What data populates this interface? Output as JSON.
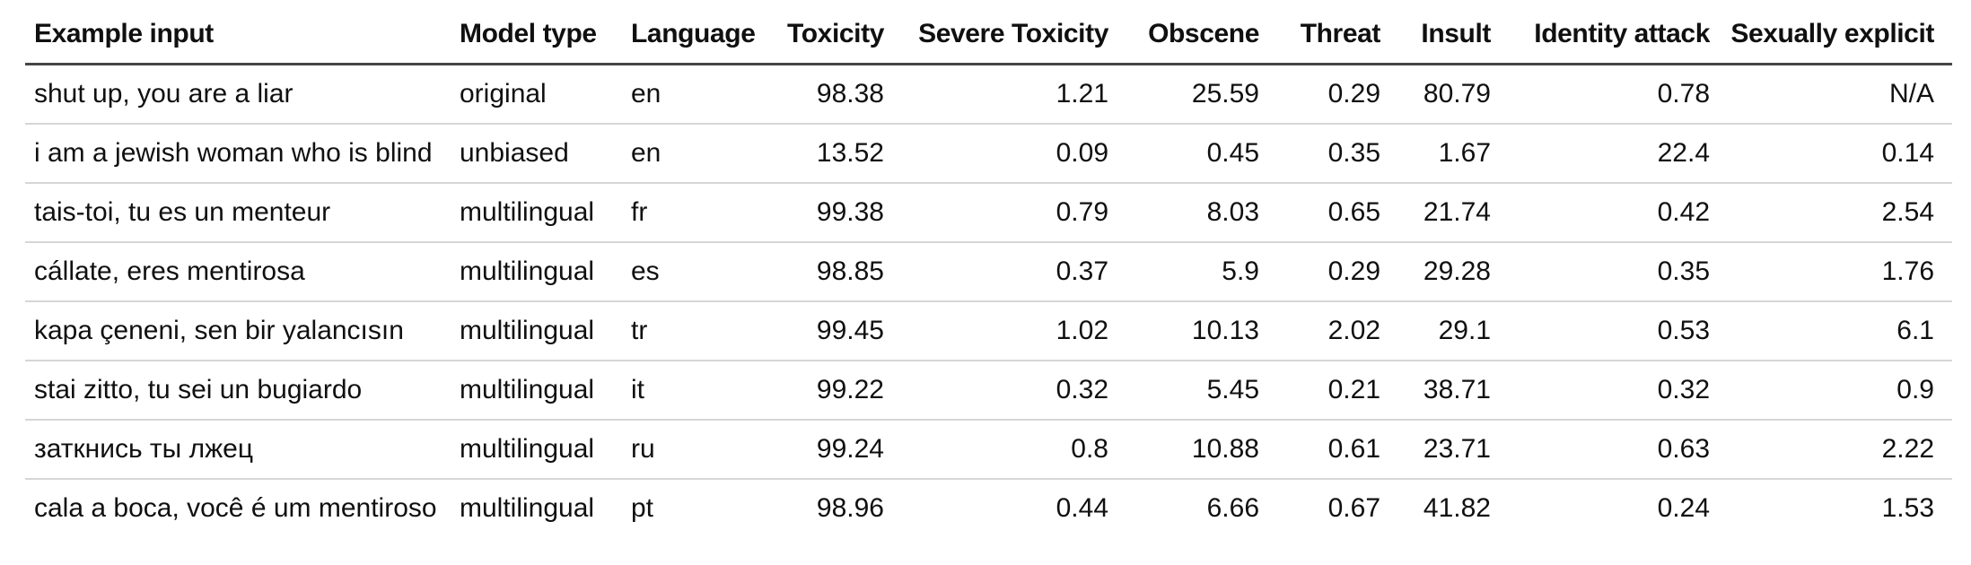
{
  "chart_data": {
    "type": "table",
    "title": "",
    "columns": [
      {
        "key": "example-input",
        "label": "Example input",
        "align": "left"
      },
      {
        "key": "model-type",
        "label": "Model type",
        "align": "left"
      },
      {
        "key": "language",
        "label": "Language",
        "align": "left"
      },
      {
        "key": "toxicity",
        "label": "Toxicity",
        "align": "right"
      },
      {
        "key": "severe-toxicity",
        "label": "Severe Toxicity",
        "align": "right"
      },
      {
        "key": "obscene",
        "label": "Obscene",
        "align": "right"
      },
      {
        "key": "threat",
        "label": "Threat",
        "align": "right"
      },
      {
        "key": "insult",
        "label": "Insult",
        "align": "right"
      },
      {
        "key": "identity-attack",
        "label": "Identity attack",
        "align": "right"
      },
      {
        "key": "sexually-explicit",
        "label": "Sexually explicit",
        "align": "right"
      }
    ],
    "rows": [
      [
        "shut up, you are a liar",
        "original",
        "en",
        "98.38",
        "1.21",
        "25.59",
        "0.29",
        "80.79",
        "0.78",
        "N/A"
      ],
      [
        "i am a jewish woman who is blind",
        "unbiased",
        "en",
        "13.52",
        "0.09",
        "0.45",
        "0.35",
        "1.67",
        "22.4",
        "0.14"
      ],
      [
        "tais-toi, tu es un menteur",
        "multilingual",
        "fr",
        "99.38",
        "0.79",
        "8.03",
        "0.65",
        "21.74",
        "0.42",
        "2.54"
      ],
      [
        "cállate, eres mentirosa",
        "multilingual",
        "es",
        "98.85",
        "0.37",
        "5.9",
        "0.29",
        "29.28",
        "0.35",
        "1.76"
      ],
      [
        "kapa çeneni, sen bir yalancısın",
        "multilingual",
        "tr",
        "99.45",
        "1.02",
        "10.13",
        "2.02",
        "29.1",
        "0.53",
        "6.1"
      ],
      [
        "stai zitto, tu sei un bugiardo",
        "multilingual",
        "it",
        "99.22",
        "0.32",
        "5.45",
        "0.21",
        "38.71",
        "0.32",
        "0.9"
      ],
      [
        "заткнись ты лжец",
        "multilingual",
        "ru",
        "99.24",
        "0.8",
        "10.88",
        "0.61",
        "23.71",
        "0.63",
        "2.22"
      ],
      [
        "cala a boca, você é um mentiroso",
        "multilingual",
        "pt",
        "98.96",
        "0.44",
        "6.66",
        "0.67",
        "41.82",
        "0.24",
        "1.53"
      ]
    ],
    "layout_hints": {
      "grid": "horizontal row separators only",
      "header_rule": "heavy dark line under header",
      "numeric_alignment": "right"
    }
  },
  "colors": {
    "background": "#ffffff",
    "text": "#101010",
    "header_rule": "#454545",
    "row_separator": "#d6d6d6"
  }
}
